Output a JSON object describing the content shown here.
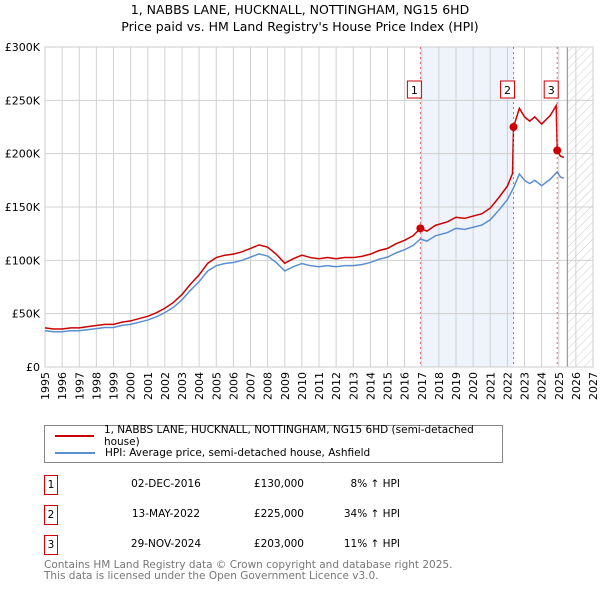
{
  "title": [
    "1, NABBS LANE, HUCKNALL, NOTTINGHAM, NG15 6HD",
    "Price paid vs. HM Land Registry's House Price Index (HPI)"
  ],
  "chart_data": {
    "type": "line",
    "title": "1, NABBS LANE, HUCKNALL, NOTTINGHAM, NG15 6HD - Price paid vs. HM Land Registry's House Price Index (HPI)",
    "xlim": [
      1995,
      2027
    ],
    "ylim": [
      0,
      300000
    ],
    "x_ticks": [
      "1995",
      "1996",
      "1997",
      "1998",
      "1999",
      "2000",
      "2001",
      "2002",
      "2003",
      "2004",
      "2005",
      "2006",
      "2007",
      "2008",
      "2009",
      "2010",
      "2011",
      "2012",
      "2013",
      "2014",
      "2015",
      "2016",
      "2017",
      "2018",
      "2019",
      "2020",
      "2021",
      "2022",
      "2023",
      "2024",
      "2025",
      "2026",
      "2027"
    ],
    "y_ticks": [
      {
        "v": 0,
        "label": "£0"
      },
      {
        "v": 50000,
        "label": "£50K"
      },
      {
        "v": 100000,
        "label": "£100K"
      },
      {
        "v": 150000,
        "label": "£150K"
      },
      {
        "v": 200000,
        "label": "£200K"
      },
      {
        "v": 250000,
        "label": "£250K"
      },
      {
        "v": 300000,
        "label": "£300K"
      }
    ],
    "grid": true,
    "projection_start": 2025.5,
    "series": [
      {
        "name": "1, NABBS LANE, HUCKNALL, NOTTINGHAM, NG15 6HD (semi-detached house)",
        "color": "#cc0000",
        "x": [
          1995,
          1995.5,
          1996,
          1996.5,
          1997,
          1997.5,
          1998,
          1998.5,
          1999,
          1999.5,
          2000,
          2000.5,
          2001,
          2001.5,
          2002,
          2002.5,
          2003,
          2003.5,
          2004,
          2004.5,
          2005,
          2005.5,
          2006,
          2006.5,
          2007,
          2007.5,
          2008,
          2008.5,
          2009,
          2009.5,
          2010,
          2010.5,
          2011,
          2011.5,
          2012,
          2012.5,
          2013,
          2013.5,
          2014,
          2014.5,
          2015,
          2015.5,
          2016,
          2016.5,
          2016.92,
          2017.3,
          2017.8,
          2018.5,
          2019,
          2019.5,
          2020,
          2020.5,
          2021,
          2021.5,
          2022,
          2022.3,
          2022.36,
          2022.7,
          2023,
          2023.3,
          2023.6,
          2024,
          2024.5,
          2024.85,
          2024.91,
          2025.1,
          2025.3
        ],
        "y": [
          36700,
          35600,
          35600,
          36700,
          36700,
          37800,
          38900,
          40000,
          40000,
          42100,
          43200,
          45400,
          47500,
          50800,
          55100,
          60500,
          68000,
          77800,
          86400,
          97200,
          102600,
          104800,
          105800,
          108000,
          111200,
          114500,
          112300,
          105800,
          97200,
          101500,
          104800,
          102600,
          101500,
          102600,
          101500,
          102600,
          102600,
          103700,
          105800,
          109100,
          111200,
          115600,
          118800,
          123100,
          130000,
          127400,
          132800,
          136100,
          140400,
          139300,
          141500,
          143600,
          149000,
          158800,
          169600,
          181400,
          225000,
          242500,
          234500,
          230500,
          234500,
          227800,
          235800,
          245000,
          203000,
          197600,
          196500
        ]
      },
      {
        "name": "HPI: Average price, semi-detached house, Ashfield",
        "color": "#5b8fd0",
        "x": [
          1995,
          1995.5,
          1996,
          1996.5,
          1997,
          1997.5,
          1998,
          1998.5,
          1999,
          1999.5,
          2000,
          2000.5,
          2001,
          2001.5,
          2002,
          2002.5,
          2003,
          2003.5,
          2004,
          2004.5,
          2005,
          2005.5,
          2006,
          2006.5,
          2007,
          2007.5,
          2008,
          2008.5,
          2009,
          2009.5,
          2010,
          2010.5,
          2011,
          2011.5,
          2012,
          2012.5,
          2013,
          2013.5,
          2014,
          2014.5,
          2015,
          2015.5,
          2016,
          2016.5,
          2016.92,
          2017.3,
          2017.8,
          2018.5,
          2019,
          2019.5,
          2020,
          2020.5,
          2021,
          2021.5,
          2022,
          2022.36,
          2022.7,
          2023,
          2023.3,
          2023.6,
          2024,
          2024.5,
          2024.91,
          2025.1,
          2025.3
        ],
        "y": [
          34000,
          33000,
          33000,
          34000,
          34000,
          35000,
          36000,
          37000,
          37000,
          39000,
          40000,
          42000,
          44000,
          47000,
          51000,
          56000,
          63000,
          72000,
          80000,
          90000,
          95000,
          97000,
          98000,
          100000,
          103000,
          106000,
          104000,
          98000,
          90000,
          94000,
          97000,
          95000,
          94000,
          95000,
          94000,
          95000,
          95000,
          96000,
          98000,
          101000,
          103000,
          107000,
          110000,
          114000,
          120000,
          118000,
          123000,
          126000,
          130000,
          129000,
          131000,
          133000,
          138000,
          147000,
          157000,
          168000,
          181000,
          175000,
          172000,
          175000,
          170000,
          176000,
          183000,
          178000,
          177000
        ]
      }
    ],
    "sales": [
      {
        "n": "1",
        "x": 2016.92,
        "date": "02-DEC-2016",
        "price": "£130,000",
        "value": 130000,
        "pct": "8% ↑ HPI"
      },
      {
        "n": "2",
        "x": 2022.36,
        "date": "13-MAY-2022",
        "price": "£225,000",
        "value": 225000,
        "pct": "34% ↑ HPI"
      },
      {
        "n": "3",
        "x": 2024.91,
        "date": "29-NOV-2024",
        "price": "£203,000",
        "value": 203000,
        "pct": "11% ↑ HPI"
      }
    ],
    "legend_position": "below"
  },
  "legend": {
    "red": "1, NABBS LANE, HUCKNALL, NOTTINGHAM, NG15 6HD (semi-detached house)",
    "blue": "HPI: Average price, semi-detached house, Ashfield"
  },
  "footer": [
    "Contains HM Land Registry data © Crown copyright and database right 2025.",
    "This data is licensed under the Open Government Licence v3.0."
  ]
}
